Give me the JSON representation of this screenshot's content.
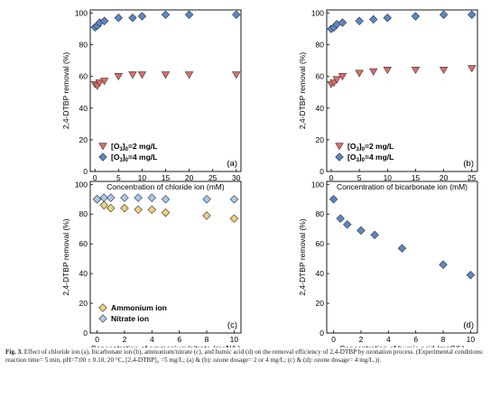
{
  "figure": {
    "caption_label": "Fig. 3.",
    "caption_text": "Effect of chloride ion (a), bicarbonate ion (b), ammonium/nitrate (c), and humic acid (d) on the removal efficiency of 2,4-DTBP by ozonation process. (Experimental conditions: reaction time= 5 min, pH=7.00 ± 0.10, 20 °C, [2,4-DTBP]₀ =5 mg/L; (a) & (b): ozone dosage= 2 or 4 mg/L; (c) & (d): ozone dosage= 4 mg/L.))."
  },
  "colors": {
    "red": "#e06c65",
    "blue": "#5b86c8",
    "yellow": "#ecd07a",
    "lightblue": "#a8c8ec",
    "axis": "#000000"
  },
  "chart_data": [
    {
      "id": "a",
      "type": "scatter",
      "panel_label": "(a)",
      "xlabel": "Concentration of chloride ion (mM)",
      "ylabel": "2,4-DTBP removal (%)",
      "xlim": [
        -1,
        31
      ],
      "ylim": [
        0,
        102
      ],
      "xticks": [
        0,
        5,
        10,
        15,
        20,
        25,
        30
      ],
      "yticks": [
        0,
        20,
        40,
        60,
        80,
        100
      ],
      "legend_position": "bottom-left",
      "series": [
        {
          "name": "[O3]0=2 mg/L",
          "name_base": "[O",
          "name_sub1": "3",
          "name_mid": "]",
          "name_sub2": "0",
          "name_tail": "=2 mg/L",
          "marker": "triangle-down",
          "color": "#e06c65",
          "x": [
            0,
            0.5,
            1,
            2,
            5,
            8,
            10,
            15,
            20,
            30
          ],
          "y": [
            55,
            54,
            56,
            57,
            60,
            61,
            61,
            61,
            61,
            61
          ]
        },
        {
          "name": "[O3]0=4 mg/L",
          "name_base": "[O",
          "name_sub1": "3",
          "name_mid": "]",
          "name_sub2": "0",
          "name_tail": "=4 mg/L",
          "marker": "diamond",
          "color": "#5b86c8",
          "x": [
            0,
            0.5,
            1,
            2,
            5,
            8,
            10,
            15,
            20,
            30
          ],
          "y": [
            91,
            92,
            94,
            95,
            97,
            97,
            98,
            99,
            99,
            99
          ]
        }
      ]
    },
    {
      "id": "b",
      "type": "scatter",
      "panel_label": "(b)",
      "xlabel": "Concentration of bicarbonate ion (mM)",
      "ylabel": "2,4-DTBP removal (%)",
      "xlim": [
        -0.8,
        26
      ],
      "ylim": [
        0,
        102
      ],
      "xticks": [
        0,
        5,
        10,
        15,
        20,
        25
      ],
      "yticks": [
        0,
        20,
        40,
        60,
        80,
        100
      ],
      "legend_position": "bottom-left",
      "series": [
        {
          "name": "[O3]0=2 mg/L",
          "name_base": "[O",
          "name_sub1": "3",
          "name_mid": "]",
          "name_sub2": "0",
          "name_tail": "=2 mg/L",
          "marker": "triangle-down",
          "color": "#e06c65",
          "x": [
            0,
            0.5,
            1,
            2,
            5,
            7.5,
            10,
            15,
            20,
            25
          ],
          "y": [
            55,
            56,
            58,
            60,
            62,
            63,
            64,
            64,
            64,
            65
          ]
        },
        {
          "name": "[O3]0=4 mg/L",
          "name_base": "[O",
          "name_sub1": "3",
          "name_mid": "]",
          "name_sub2": "0",
          "name_tail": "=4 mg/L",
          "marker": "diamond",
          "color": "#5b86c8",
          "x": [
            0,
            0.5,
            1,
            2,
            5,
            7.5,
            10,
            15,
            20,
            25
          ],
          "y": [
            90,
            91,
            93,
            94,
            95,
            96,
            97,
            98,
            99,
            99
          ]
        }
      ]
    },
    {
      "id": "c",
      "type": "scatter",
      "panel_label": "(c)",
      "xlabel": "Concentration of ammonium/nitrate (mgN/L)",
      "ylabel": "2,4-DTBP removal (%)",
      "xlim": [
        -0.5,
        10.5
      ],
      "ylim": [
        0,
        102
      ],
      "xticks": [
        0,
        2,
        4,
        6,
        8,
        10
      ],
      "yticks": [
        0,
        20,
        40,
        60,
        80,
        100
      ],
      "legend_position": "bottom-left",
      "series": [
        {
          "name": "Ammonium ion",
          "marker": "diamond",
          "color": "#ecd07a",
          "x": [
            0,
            0.5,
            1,
            2,
            3,
            4,
            5,
            8,
            10
          ],
          "y": [
            90,
            86,
            84,
            84,
            83,
            83,
            81,
            79,
            77
          ]
        },
        {
          "name": "Nitrate ion",
          "marker": "diamond",
          "color": "#a8c8ec",
          "x": [
            0,
            0.5,
            1,
            2,
            3,
            4,
            5,
            8,
            10
          ],
          "y": [
            90,
            91,
            91,
            91,
            91,
            91,
            90,
            90,
            90
          ]
        }
      ]
    },
    {
      "id": "d",
      "type": "scatter",
      "panel_label": "(d)",
      "xlabel": "Concentration of humic acid (mgC/L)",
      "ylabel": "2,4-DTBP removal (%)",
      "xlim": [
        -0.5,
        10.5
      ],
      "ylim": [
        0,
        102
      ],
      "xticks": [
        0,
        2,
        4,
        6,
        8,
        10
      ],
      "yticks": [
        0,
        20,
        40,
        60,
        80,
        100
      ],
      "legend_position": "none",
      "series": [
        {
          "marker": "diamond",
          "color": "#5b86c8",
          "x": [
            0,
            0.5,
            1,
            2,
            3,
            5,
            8,
            10
          ],
          "y": [
            90,
            77,
            73,
            69,
            66,
            57,
            46,
            39
          ]
        }
      ]
    }
  ]
}
